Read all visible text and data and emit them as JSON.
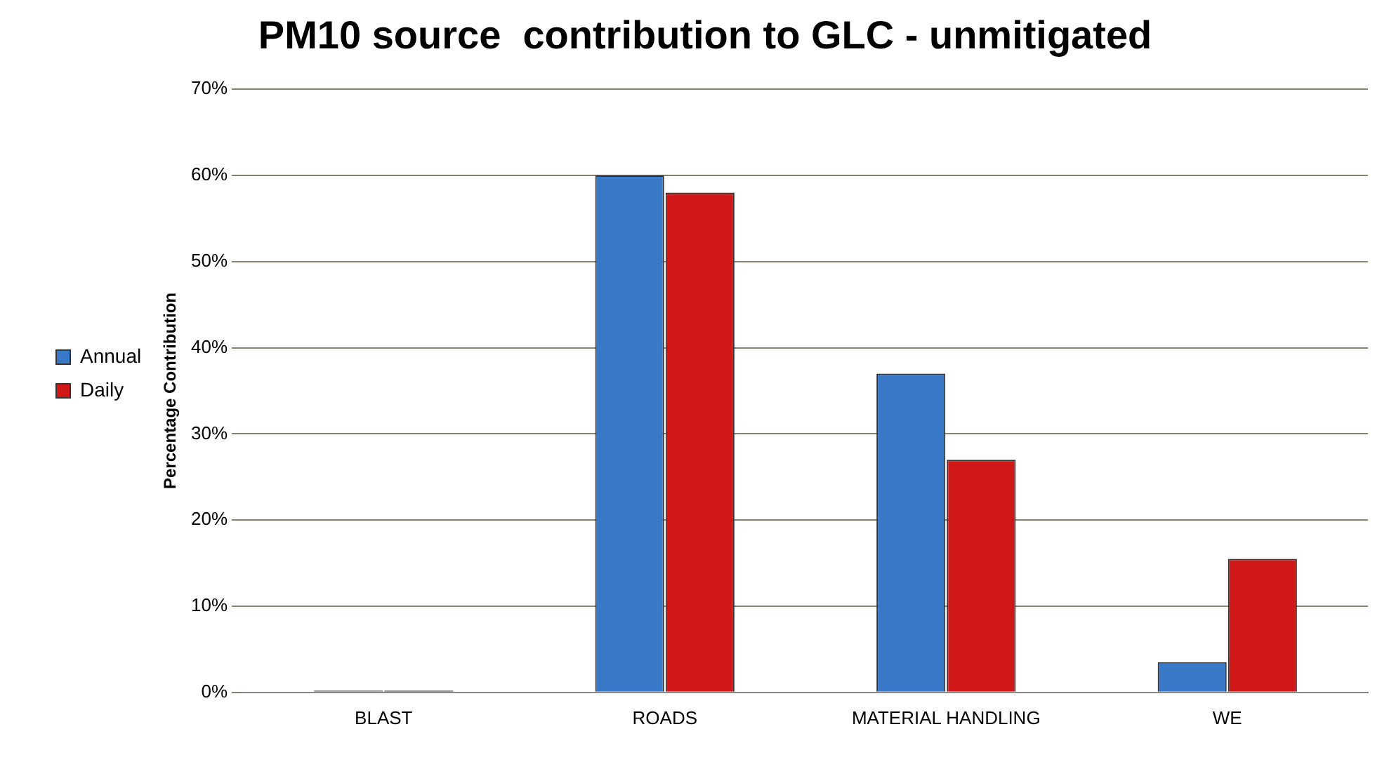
{
  "chart_data": {
    "type": "bar",
    "title": "PM10 source  contribution to GLC - unmitigated",
    "ylabel": "Percentage Contribution",
    "categories": [
      "BLAST",
      "ROADS",
      "MATERIAL HANDLING",
      "WE"
    ],
    "series": [
      {
        "name": "Annual",
        "color": "#3a78c8",
        "values": [
          0.2,
          60,
          37,
          3.5
        ]
      },
      {
        "name": "Daily",
        "color": "#d01818",
        "values": [
          0.2,
          58,
          27,
          15.5
        ]
      }
    ],
    "ylim": [
      0,
      70
    ],
    "yticks": [
      {
        "value": 0,
        "label": "0%"
      },
      {
        "value": 10,
        "label": "10%"
      },
      {
        "value": 20,
        "label": "20%"
      },
      {
        "value": 30,
        "label": "30%"
      },
      {
        "value": 40,
        "label": "40%"
      },
      {
        "value": 50,
        "label": "50%"
      },
      {
        "value": 60,
        "label": "60%"
      },
      {
        "value": 70,
        "label": "70%"
      }
    ],
    "grid": "y",
    "legend": "left"
  }
}
